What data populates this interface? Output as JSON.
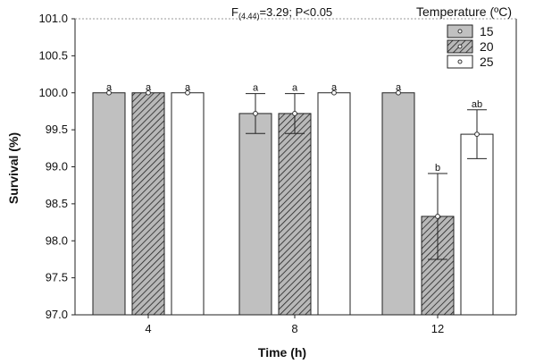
{
  "chart_data": {
    "type": "bar",
    "xlabel": "Time (h)",
    "ylabel": "Survival (%)",
    "ylim": [
      97.0,
      101.0
    ],
    "yticks": [
      "97.0",
      "97.5",
      "98.0",
      "98.5",
      "99.0",
      "99.5",
      "100.0",
      "100.5",
      "101.0"
    ],
    "categories": [
      "4",
      "8",
      "12"
    ],
    "stat": {
      "prefix": "F",
      "subscript": "(4.44)",
      "suffix": "=3.29; P<0.05"
    },
    "legend_title": "Temperature (ºC)",
    "legend_position": "top-right",
    "grid": false,
    "series": [
      {
        "name": "15",
        "fill": "#c0c0c0",
        "pattern": "solid",
        "values": [
          100.0,
          99.72,
          100.0
        ],
        "errors": [
          0,
          0.27,
          0
        ],
        "labels": [
          "a",
          "a",
          "a"
        ]
      },
      {
        "name": "20",
        "fill": "#a0a0a0",
        "pattern": "hatch",
        "values": [
          100.0,
          99.72,
          98.33
        ],
        "errors": [
          0,
          0.27,
          0.58
        ],
        "labels": [
          "a",
          "a",
          "b"
        ]
      },
      {
        "name": "25",
        "fill": "#ffffff",
        "pattern": "solid",
        "values": [
          100.0,
          100.0,
          99.44
        ],
        "errors": [
          0,
          0,
          0.33
        ],
        "labels": [
          "a",
          "a",
          "ab"
        ]
      }
    ]
  }
}
